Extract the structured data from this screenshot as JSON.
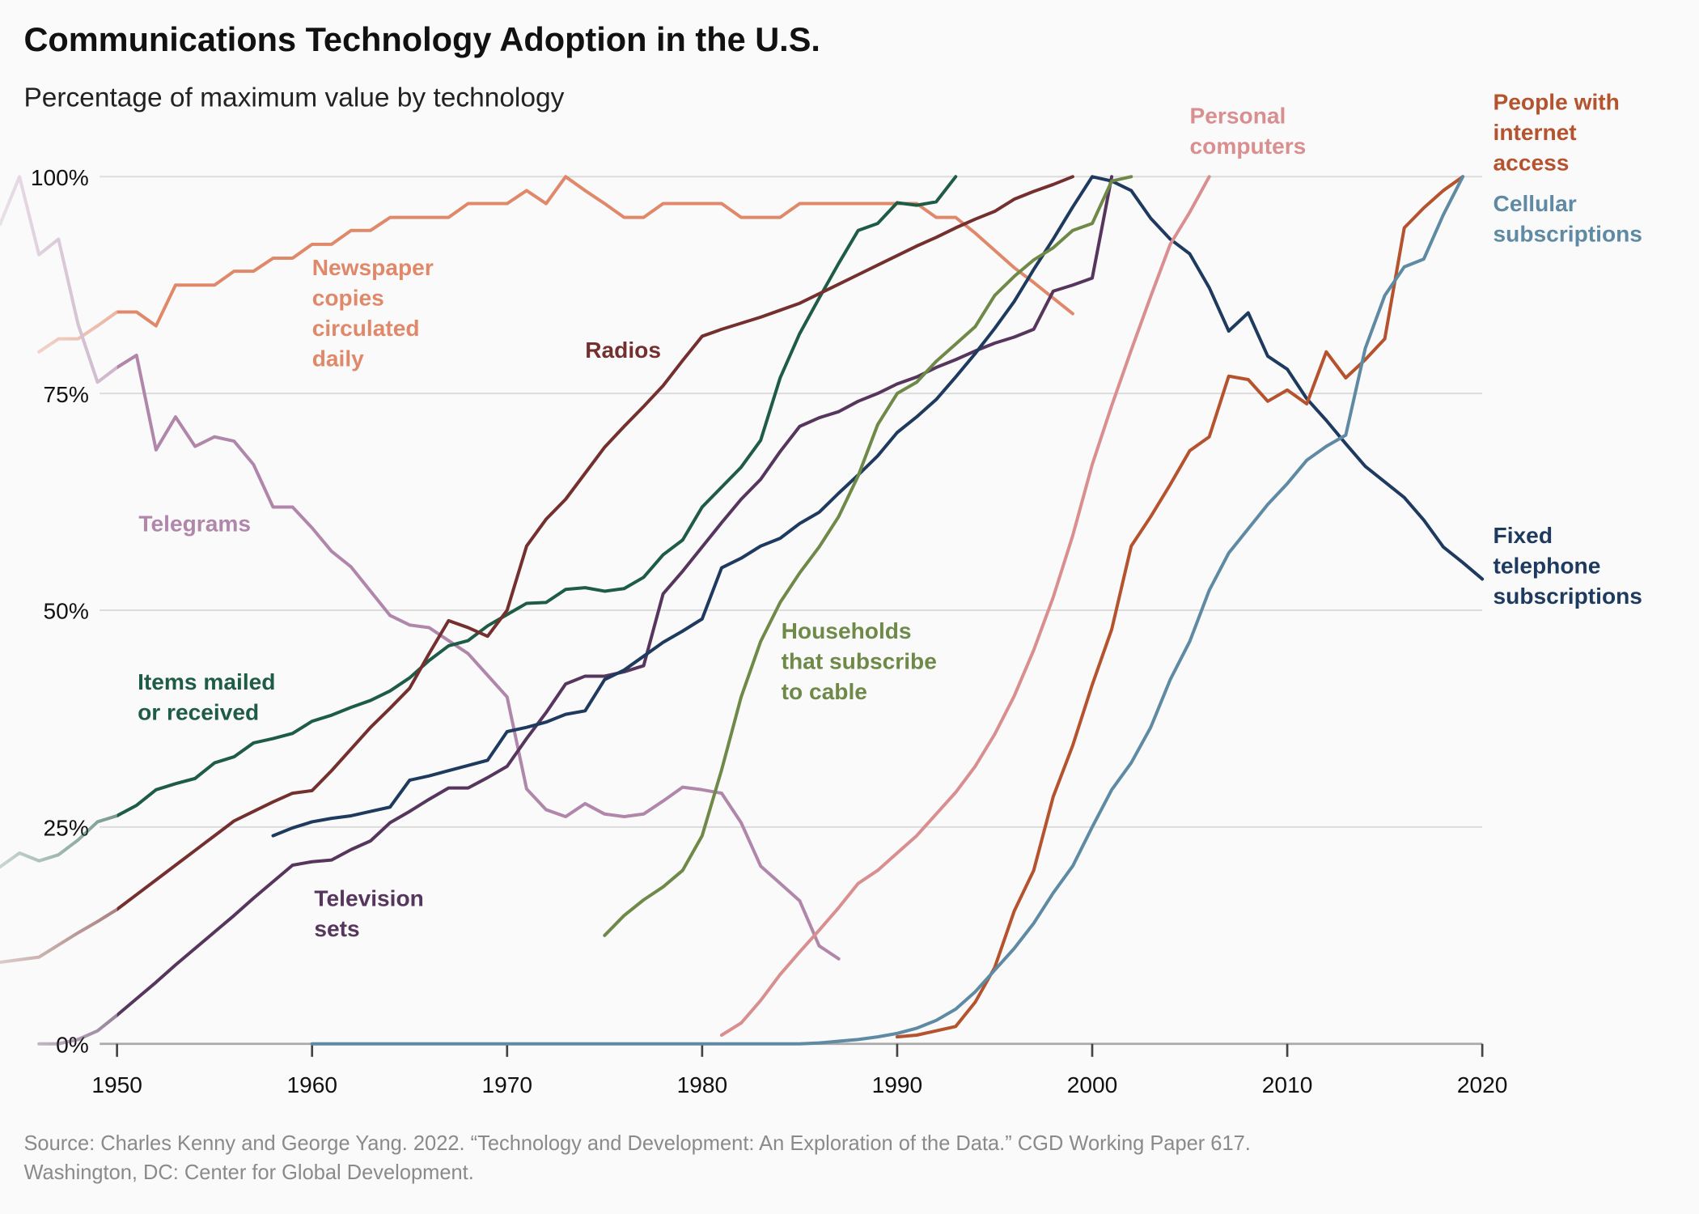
{
  "chart_data": {
    "type": "line",
    "title": "Communications Technology Adoption in the U.S.",
    "subtitle": "Percentage of maximum value by technology",
    "source": "Source: Charles Kenny and George Yang. 2022. “Technology and Development: An Exploration of the Data.” CGD Working Paper 617.\nWashington, DC: Center for Global Development.",
    "xlim": [
      1944,
      2020
    ],
    "xticks": [
      1950,
      1960,
      1970,
      1980,
      1990,
      2000,
      2010,
      2020
    ],
    "ylim": [
      0,
      100
    ],
    "yticks": [
      {
        "value": 0,
        "label": "0%"
      },
      {
        "value": 25,
        "label": "25%"
      },
      {
        "value": 50,
        "label": "50%"
      },
      {
        "value": 75,
        "label": "75%"
      },
      {
        "value": 100,
        "label": "100%"
      }
    ],
    "grid": true,
    "series": [
      {
        "name": "Newspaper\ncopies\ncirculated\ndaily",
        "color": "#e0896a",
        "x": [
          1946,
          1947,
          1948,
          1949,
          1950,
          1951,
          1952,
          1953,
          1954,
          1955,
          1956,
          1957,
          1958,
          1959,
          1960,
          1961,
          1962,
          1963,
          1964,
          1965,
          1966,
          1967,
          1968,
          1969,
          1970,
          1971,
          1972,
          1973,
          1974,
          1975,
          1976,
          1977,
          1978,
          1979,
          1980,
          1981,
          1982,
          1983,
          1984,
          1985,
          1986,
          1987,
          1988,
          1989,
          1990,
          1991,
          1992,
          1993,
          1994,
          1995,
          1996,
          1997,
          1998,
          1999
        ],
        "values": [
          79.8,
          81.3,
          81.3,
          82.8,
          84.4,
          84.4,
          82.8,
          87.5,
          87.5,
          87.5,
          89.1,
          89.1,
          90.6,
          90.6,
          92.2,
          92.2,
          93.8,
          93.8,
          95.3,
          95.3,
          95.3,
          95.3,
          96.9,
          96.9,
          96.9,
          98.4,
          96.9,
          100,
          98.4,
          96.9,
          95.3,
          95.3,
          96.9,
          96.9,
          96.9,
          96.9,
          95.3,
          95.3,
          95.3,
          96.9,
          96.9,
          96.9,
          96.9,
          96.9,
          96.9,
          96.9,
          95.3,
          95.3,
          93.5,
          91.5,
          89.5,
          87.8,
          86,
          84.2
        ]
      },
      {
        "name": "Telegrams",
        "color": "#b087ab",
        "x": [
          1944,
          1945,
          1946,
          1947,
          1948,
          1949,
          1950,
          1951,
          1952,
          1953,
          1954,
          1955,
          1956,
          1957,
          1958,
          1959,
          1960,
          1961,
          1962,
          1963,
          1964,
          1965,
          1966,
          1967,
          1968,
          1969,
          1970,
          1971,
          1972,
          1973,
          1974,
          1975,
          1976,
          1977,
          1978,
          1979,
          1980,
          1981,
          1982,
          1983,
          1984,
          1985,
          1986,
          1987
        ],
        "values": [
          94.5,
          100,
          91,
          92.8,
          83,
          76.3,
          78,
          79.4,
          68.5,
          72.3,
          68.9,
          70,
          69.5,
          66.8,
          61.9,
          61.9,
          59.5,
          56.8,
          55,
          52.2,
          49.4,
          48.3,
          48,
          46.5,
          45,
          42.5,
          40,
          29.4,
          27,
          26.2,
          27.7,
          26.5,
          26.2,
          26.5,
          28,
          29.6,
          29.3,
          28.9,
          25.5,
          20.5,
          18.5,
          16.5,
          11.3,
          9.8
        ]
      },
      {
        "name": "Items mailed\nor received",
        "color": "#1f5c45",
        "x": [
          1944,
          1945,
          1946,
          1947,
          1948,
          1949,
          1950,
          1951,
          1952,
          1953,
          1954,
          1955,
          1956,
          1957,
          1958,
          1959,
          1960,
          1961,
          1962,
          1963,
          1964,
          1965,
          1966,
          1967,
          1968,
          1969,
          1970,
          1971,
          1972,
          1973,
          1974,
          1975,
          1976,
          1977,
          1978,
          1979,
          1980,
          1981,
          1982,
          1983,
          1984,
          1985,
          1986,
          1987,
          1988,
          1989,
          1990,
          1991,
          1992,
          1993
        ],
        "values": [
          20.4,
          22,
          21.1,
          21.8,
          23.5,
          25.6,
          26.3,
          27.5,
          29.3,
          30,
          30.6,
          32.4,
          33.1,
          34.7,
          35.2,
          35.8,
          37.2,
          37.9,
          38.8,
          39.6,
          40.7,
          42.2,
          44.2,
          45.9,
          46.5,
          48.2,
          49.5,
          50.8,
          50.9,
          52.4,
          52.6,
          52.2,
          52.5,
          53.8,
          56.4,
          58.1,
          61.9,
          64.2,
          66.5,
          69.6,
          76.8,
          81.9,
          86,
          90,
          93.8,
          94.6,
          97,
          96.7,
          97.1,
          100
        ]
      },
      {
        "name": "Radios",
        "color": "#74302e",
        "x": [
          1944,
          1945,
          1946,
          1947,
          1948,
          1949,
          1950,
          1951,
          1952,
          1953,
          1954,
          1955,
          1956,
          1957,
          1958,
          1959,
          1960,
          1961,
          1962,
          1963,
          1964,
          1965,
          1966,
          1967,
          1968,
          1969,
          1970,
          1971,
          1972,
          1973,
          1974,
          1975,
          1976,
          1977,
          1978,
          1979,
          1980,
          1981,
          1982,
          1983,
          1984,
          1985,
          1986,
          1987,
          1988,
          1989,
          1990,
          1991,
          1992,
          1993,
          1994,
          1995,
          1996,
          1997,
          1998,
          1999
        ],
        "values": [
          9.4,
          9.7,
          10,
          11.4,
          12.8,
          14.1,
          15.5,
          17.2,
          18.9,
          20.6,
          22.3,
          24,
          25.7,
          26.8,
          27.9,
          28.9,
          29.2,
          31.5,
          34,
          36.5,
          38.7,
          41,
          45,
          48.8,
          48,
          47,
          50,
          57.4,
          60.5,
          62.8,
          65.8,
          68.8,
          71.2,
          73.5,
          75.9,
          78.8,
          81.6,
          82.4,
          83.1,
          83.8,
          84.6,
          85.4,
          86.5,
          87.6,
          88.7,
          89.8,
          90.9,
          92,
          93,
          94.1,
          95.1,
          96,
          97.4,
          98.3,
          99.1,
          100
        ]
      },
      {
        "name": "Television\nsets",
        "color": "#57365e",
        "x": [
          1946,
          1947,
          1948,
          1949,
          1950,
          1951,
          1952,
          1953,
          1954,
          1955,
          1956,
          1957,
          1958,
          1959,
          1960,
          1961,
          1962,
          1963,
          1964,
          1965,
          1966,
          1967,
          1968,
          1969,
          1970,
          1971,
          1972,
          1973,
          1974,
          1975,
          1976,
          1977,
          1978,
          1979,
          1980,
          1981,
          1982,
          1983,
          1984,
          1985,
          1986,
          1987,
          1988,
          1989,
          1990,
          1991,
          1992,
          1993,
          1994,
          1995,
          1996,
          1997,
          1998,
          1999,
          2000,
          2001
        ],
        "values": [
          0,
          0,
          0.5,
          1.5,
          3.3,
          5.2,
          7.1,
          9.1,
          11,
          12.9,
          14.8,
          16.8,
          18.7,
          20.6,
          21,
          21.2,
          22.4,
          23.4,
          25.5,
          26.8,
          28.2,
          29.5,
          29.5,
          30.7,
          32,
          35.2,
          38.2,
          41.5,
          42.4,
          42.4,
          42.9,
          43.6,
          51.9,
          54.5,
          57.3,
          60.1,
          62.8,
          65.1,
          68.3,
          71.2,
          72.2,
          72.9,
          74.1,
          75,
          76.1,
          76.9,
          78,
          78.9,
          79.9,
          80.8,
          81.5,
          82.4,
          86.8,
          87.5,
          88.3,
          100
        ]
      },
      {
        "name": "Fixed\ntelephone\nsubscriptions",
        "color": "#1e3a5f",
        "x": [
          1958,
          1959,
          1960,
          1961,
          1962,
          1963,
          1964,
          1965,
          1966,
          1967,
          1968,
          1969,
          1970,
          1971,
          1972,
          1973,
          1974,
          1975,
          1976,
          1977,
          1978,
          1979,
          1980,
          1981,
          1982,
          1983,
          1984,
          1985,
          1986,
          1987,
          1988,
          1989,
          1990,
          1991,
          1992,
          1993,
          1994,
          1995,
          1996,
          1997,
          1998,
          1999,
          2000,
          2001,
          2002,
          2003,
          2004,
          2005,
          2006,
          2007,
          2008,
          2009,
          2010,
          2011,
          2012,
          2013,
          2014,
          2015,
          2016,
          2017,
          2018,
          2019,
          2020
        ],
        "values": [
          24,
          24.9,
          25.6,
          26,
          26.3,
          26.8,
          27.3,
          30.4,
          30.9,
          31.5,
          32.1,
          32.7,
          36,
          36.5,
          37.1,
          38,
          38.4,
          42,
          43.1,
          44.7,
          46.3,
          47.6,
          49,
          54.9,
          56,
          57.4,
          58.3,
          60,
          61.3,
          63.5,
          65.6,
          67.8,
          70.5,
          72.3,
          74.3,
          76.9,
          79.6,
          82.5,
          85.6,
          89.3,
          92.8,
          96.5,
          100,
          99.5,
          98.4,
          95.2,
          92.8,
          91.1,
          87.2,
          82.2,
          84.3,
          79.3,
          77.8,
          74.4,
          71.9,
          69.2,
          66.6,
          64.8,
          63,
          60.4,
          57.3,
          55.5,
          53.6
        ]
      },
      {
        "name": "Households\nthat subscribe\nto cable",
        "color": "#6f8a48",
        "x": [
          1975,
          1976,
          1977,
          1978,
          1979,
          1980,
          1981,
          1982,
          1983,
          1984,
          1985,
          1986,
          1987,
          1988,
          1989,
          1990,
          1991,
          1992,
          1993,
          1994,
          1995,
          1996,
          1997,
          1998,
          1999,
          2000,
          2001,
          2002
        ],
        "values": [
          12.5,
          14.8,
          16.6,
          18.1,
          20,
          24,
          31.6,
          40,
          46.4,
          50.9,
          54.3,
          57.3,
          60.8,
          65.5,
          71.4,
          75,
          76.3,
          78.7,
          80.7,
          82.7,
          86.3,
          88.5,
          90.4,
          91.8,
          93.8,
          94.6,
          99.5,
          100
        ]
      },
      {
        "name": "Personal\ncomputers",
        "color": "#d98e8f",
        "x": [
          1981,
          1982,
          1983,
          1984,
          1985,
          1986,
          1987,
          1988,
          1989,
          1990,
          1991,
          1992,
          1993,
          1994,
          1995,
          1996,
          1997,
          1998,
          1999,
          2000,
          2001,
          2002,
          2003,
          2004,
          2005,
          2006
        ],
        "values": [
          1,
          2.4,
          5,
          8,
          10.6,
          13.1,
          15.7,
          18.5,
          20,
          22,
          24,
          26.5,
          29,
          32,
          35.7,
          40.1,
          45.4,
          51.5,
          58.6,
          66.8,
          73.6,
          80,
          86.2,
          92.2,
          95.9,
          100
        ]
      },
      {
        "name": "People with\ninternet\naccess",
        "color": "#b5532e",
        "x": [
          1990,
          1991,
          1992,
          1993,
          1994,
          1995,
          1996,
          1997,
          1998,
          1999,
          2000,
          2001,
          2002,
          2003,
          2004,
          2005,
          2006,
          2007,
          2008,
          2009,
          2010,
          2011,
          2012,
          2013,
          2014,
          2015,
          2016,
          2017,
          2018,
          2019
        ],
        "values": [
          0.8,
          1,
          1.5,
          2,
          4.8,
          8.8,
          15.3,
          20,
          28.5,
          34.4,
          41.4,
          47.8,
          57.4,
          60.8,
          64.5,
          68.4,
          70,
          77,
          76.6,
          74.1,
          75.4,
          73.8,
          79.8,
          76.8,
          78.9,
          81.3,
          94.1,
          96.4,
          98.4,
          100
        ]
      },
      {
        "name": "Cellular\nsubscriptions",
        "color": "#5f8aa3",
        "x": [
          1960,
          1961,
          1962,
          1963,
          1964,
          1965,
          1966,
          1967,
          1968,
          1969,
          1970,
          1971,
          1972,
          1973,
          1974,
          1975,
          1976,
          1977,
          1978,
          1979,
          1980,
          1981,
          1982,
          1983,
          1984,
          1985,
          1986,
          1987,
          1988,
          1989,
          1990,
          1991,
          1992,
          1993,
          1994,
          1995,
          1996,
          1997,
          1998,
          1999,
          2000,
          2001,
          2002,
          2003,
          2004,
          2005,
          2006,
          2007,
          2008,
          2009,
          2010,
          2011,
          2012,
          2013,
          2014,
          2015,
          2016,
          2017,
          2018,
          2019
        ],
        "values": [
          0,
          0,
          0,
          0,
          0,
          0,
          0,
          0,
          0,
          0,
          0,
          0,
          0,
          0,
          0,
          0,
          0,
          0,
          0,
          0,
          0,
          0,
          0,
          0,
          0,
          0,
          0.1,
          0.3,
          0.5,
          0.8,
          1.2,
          1.8,
          2.7,
          4,
          6,
          8.5,
          11,
          13.9,
          17.4,
          20.5,
          25,
          29.3,
          32.4,
          36.5,
          42,
          46.4,
          52.3,
          56.6,
          59.4,
          62.2,
          64.6,
          67.3,
          68.9,
          70.2,
          80.2,
          86.3,
          89.6,
          90.5,
          95.6,
          100
        ]
      }
    ]
  }
}
